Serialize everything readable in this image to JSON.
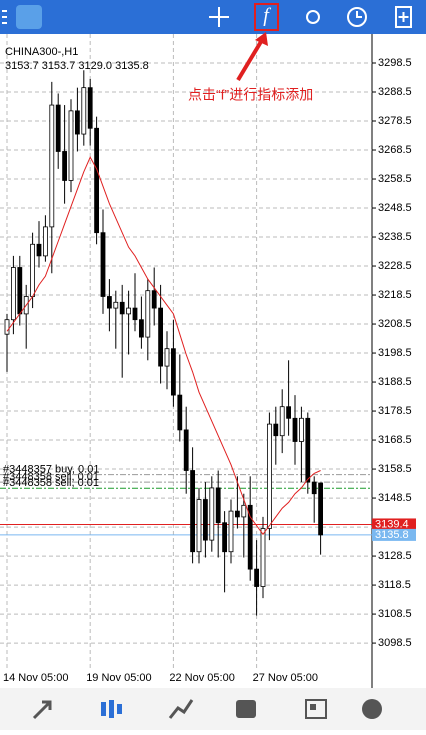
{
  "toolbar": {
    "indicator_icon": "f"
  },
  "annotation": "点击“f”进行指标添加",
  "chart_data": {
    "type": "candlestick",
    "title": "CHINA300-,H1",
    "subtitle": "3153.7 3153.7 3129.0 3135.8",
    "categories": [
      "14 Nov 05:00",
      null,
      null,
      null,
      null,
      null,
      null,
      null,
      null,
      null,
      null,
      null,
      null,
      "19 Nov 05:00",
      null,
      null,
      null,
      null,
      null,
      null,
      null,
      null,
      null,
      null,
      null,
      null,
      "22 Nov 05:00",
      null,
      null,
      null,
      null,
      null,
      null,
      null,
      null,
      null,
      null,
      null,
      null,
      "27 Nov 05:00",
      null,
      null,
      null,
      null,
      null,
      null,
      null,
      null,
      null,
      null
    ],
    "open": [
      3205,
      3210,
      3228,
      3212,
      3218,
      3236,
      3232,
      3242,
      3284,
      3268,
      3258,
      3282,
      3274,
      3290,
      3276,
      3240,
      3218,
      3214,
      3216,
      3212,
      3214,
      3210,
      3204,
      3220,
      3214,
      3194,
      3200,
      3184,
      3172,
      3158,
      3130,
      3148,
      3134,
      3152,
      3140,
      3130,
      3144,
      3142,
      3146,
      3124,
      3118,
      3138,
      3174,
      3170,
      3180,
      3176,
      3168,
      3176,
      3154,
      3153.7
    ],
    "high": [
      3212,
      3232,
      3232,
      3222,
      3240,
      3244,
      3246,
      3292,
      3288,
      3284,
      3286,
      3290,
      3296,
      3293,
      3280,
      3248,
      3224,
      3220,
      3222,
      3220,
      3226,
      3218,
      3224,
      3228,
      3222,
      3206,
      3210,
      3198,
      3180,
      3166,
      3152,
      3154,
      3156,
      3158,
      3144,
      3148,
      3156,
      3150,
      3156,
      3134,
      3142,
      3178,
      3180,
      3186,
      3196,
      3184,
      3180,
      3178,
      3156,
      3153.7
    ],
    "low": [
      3192,
      3205,
      3208,
      3200,
      3214,
      3228,
      3230,
      3226,
      3262,
      3250,
      3254,
      3268,
      3270,
      3270,
      3236,
      3212,
      3206,
      3200,
      3190,
      3198,
      3206,
      3200,
      3196,
      3208,
      3188,
      3186,
      3180,
      3168,
      3150,
      3126,
      3126,
      3128,
      3130,
      3128,
      3116,
      3126,
      3138,
      3128,
      3120,
      3108,
      3114,
      3134,
      3160,
      3164,
      3170,
      3160,
      3154,
      3150,
      3140,
      3129.0
    ],
    "close": [
      3210,
      3228,
      3212,
      3218,
      3236,
      3232,
      3242,
      3284,
      3268,
      3258,
      3282,
      3274,
      3290,
      3276,
      3240,
      3218,
      3214,
      3216,
      3212,
      3214,
      3210,
      3204,
      3220,
      3214,
      3194,
      3200,
      3184,
      3172,
      3158,
      3130,
      3148,
      3134,
      3152,
      3140,
      3130,
      3144,
      3142,
      3146,
      3124,
      3118,
      3138,
      3174,
      3170,
      3180,
      3176,
      3168,
      3176,
      3154,
      3150,
      3135.8
    ],
    "up_color": "#ffffff",
    "down_color": "#000000",
    "outline_color": "#000000",
    "ma": {
      "color": "#e02020",
      "values": [
        3206,
        3209,
        3212,
        3215,
        3218,
        3222,
        3225,
        3231,
        3237,
        3243,
        3249,
        3255,
        3261,
        3266,
        3262,
        3256,
        3250,
        3245,
        3240,
        3235,
        3232,
        3228,
        3224,
        3221,
        3218,
        3215,
        3212,
        3205,
        3198,
        3192,
        3185,
        3180,
        3175,
        3170,
        3165,
        3160,
        3154,
        3148,
        3142,
        3139,
        3136,
        3139,
        3142,
        3145,
        3147,
        3150,
        3152,
        3155,
        3157,
        3158
      ]
    },
    "orders": [
      {
        "label": "#3448357 buy, 0.01",
        "value": 3156.6,
        "color": "#9a9a9a"
      },
      {
        "label": "#3448358 sell, 0.01",
        "value": 3154.0,
        "color": "#9a9a9a"
      },
      {
        "label": "#3448358 sell, 0.01",
        "value": 3151.9,
        "color": "#1a9a2a"
      }
    ],
    "price_tags": [
      {
        "value": 3139.4,
        "color": "#e02020"
      },
      {
        "value": 3135.8,
        "color": "#7ab8f0"
      }
    ],
    "ylim": [
      3090.6,
      3308.5
    ],
    "yticks": [
      3298.5,
      3288.5,
      3278.5,
      3268.5,
      3258.5,
      3248.5,
      3238.5,
      3228.5,
      3218.5,
      3208.5,
      3198.5,
      3188.5,
      3178.5,
      3168.5,
      3158.5,
      3148.5,
      3138.5,
      3128.5,
      3118.5,
      3108.5,
      3098.5
    ],
    "grid": true
  }
}
